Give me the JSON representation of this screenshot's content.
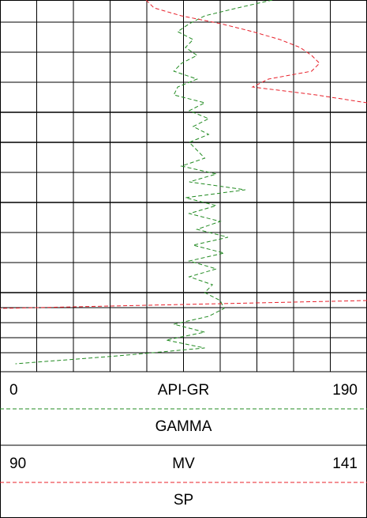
{
  "chart_data": {
    "type": "line",
    "series": [
      {
        "name": "GAMMA",
        "unit": "API-GR",
        "color": "#228b22",
        "xlim": [
          0,
          190
        ],
        "values": [
          141,
          123,
          106,
          98,
          92,
          100,
          96,
          102,
          94,
          90,
          102,
          92,
          90,
          106,
          98,
          108,
          100,
          108,
          98,
          102,
          106,
          94,
          112,
          98,
          127,
          96,
          112,
          98,
          114,
          102,
          118,
          100,
          116,
          98,
          112,
          98,
          110,
          106,
          114,
          116,
          108,
          90,
          106,
          86,
          106,
          61,
          8
        ]
      },
      {
        "name": "SP",
        "unit": "MV",
        "color": "#e8202a",
        "xlim": [
          90,
          141
        ],
        "values": [
          110.3,
          111.4,
          115.2,
          120.7,
          125.1,
          128.9,
          131.7,
          133.3,
          134.4,
          133.3,
          127.3,
          125.1,
          133.9,
          141,
          null,
          null,
          null,
          null,
          null,
          null,
          null,
          null,
          null,
          null,
          null,
          null,
          null,
          null,
          null,
          null,
          null,
          null,
          null,
          null,
          null,
          null,
          null,
          null,
          141,
          90,
          null,
          null,
          null,
          null,
          null,
          null,
          null
        ]
      }
    ]
  }
}
